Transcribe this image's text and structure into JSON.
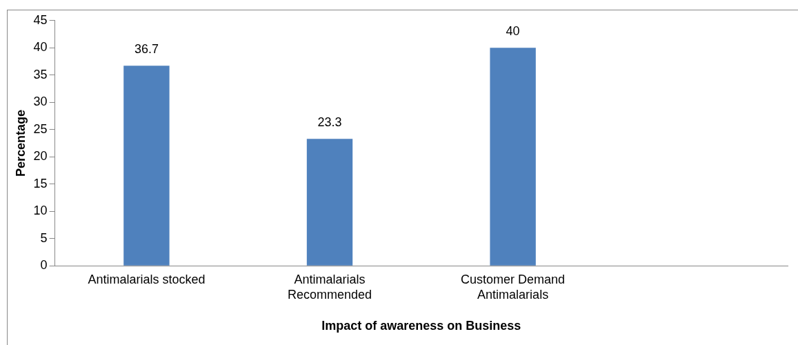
{
  "chart_data": {
    "type": "bar",
    "xlabel": "Impact of awareness on Business",
    "ylabel": "Percentage",
    "categories": [
      "Antimalarials stocked",
      "Antimalarials Recommended",
      "Customer Demand Antimalarials",
      null
    ],
    "values": [
      36.7,
      23.3,
      40,
      null
    ],
    "color": "#4f81bd",
    "ylim": [
      0,
      45
    ],
    "yticks": [
      0,
      5,
      10,
      15,
      20,
      25,
      30,
      35,
      40,
      45
    ],
    "grid": false,
    "legend": false,
    "data_labels": true
  }
}
